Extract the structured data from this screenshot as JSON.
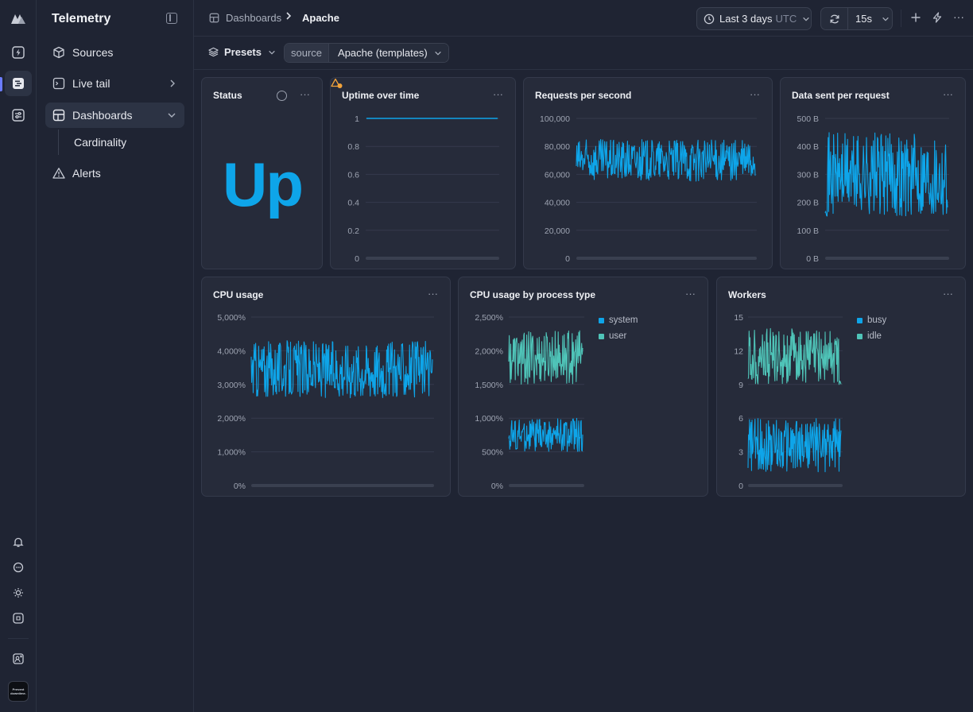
{
  "app": {
    "title": "Telemetry"
  },
  "rail": {
    "icons": [
      "logo-icon",
      "bolt-icon",
      "telemetry-icon",
      "sliders-icon",
      "bell-icon",
      "chat-icon",
      "sun-icon",
      "command-icon",
      "add-user-icon"
    ],
    "avatar_text": "Prevent downtime."
  },
  "sidebar": {
    "items": [
      {
        "label": "Sources",
        "icon": "cube-icon"
      },
      {
        "label": "Live tail",
        "icon": "terminal-icon"
      },
      {
        "label": "Dashboards",
        "icon": "dashboard-icon"
      },
      {
        "label": "Alerts",
        "icon": "warning-icon"
      }
    ],
    "sub_items": [
      {
        "label": "Cardinality"
      }
    ]
  },
  "header": {
    "breadcrumb": [
      "Dashboards",
      "Apache"
    ],
    "time_range": "Last 3 days",
    "timezone": "UTC",
    "refresh_interval": "15s"
  },
  "toolbar": {
    "presets_label": "Presets",
    "source_label": "source",
    "source_value": "Apache (templates)"
  },
  "colors": {
    "accent": "#0ea5e9",
    "secondary": "#4fc4b8",
    "background": "#1f2433",
    "card": "#262b3a"
  },
  "cards": {
    "status": {
      "title": "Status",
      "value": "Up"
    },
    "uptime": {
      "title": "Uptime over time"
    },
    "rps": {
      "title": "Requests per second"
    },
    "data_sent": {
      "title": "Data sent per request"
    },
    "cpu": {
      "title": "CPU usage"
    },
    "cpu_type": {
      "title": "CPU usage by process type"
    },
    "workers": {
      "title": "Workers"
    }
  },
  "chart_data": [
    {
      "id": "uptime",
      "type": "line",
      "title": "Uptime over time",
      "ylim": [
        0,
        1
      ],
      "yticks": [
        "1",
        "0.8",
        "0.6",
        "0.4",
        "0.2",
        "0"
      ],
      "series": [
        {
          "constant": 1
        }
      ]
    },
    {
      "id": "rps",
      "type": "line",
      "title": "Requests per second",
      "ylim": [
        0,
        100000
      ],
      "yticks": [
        "100,000",
        "80,000",
        "60,000",
        "40,000",
        "20,000",
        "0"
      ],
      "series": [
        {
          "range": [
            55000,
            85000
          ]
        }
      ]
    },
    {
      "id": "data_sent",
      "type": "line",
      "title": "Data sent per request",
      "ylim": [
        0,
        500
      ],
      "yticks": [
        "500 B",
        "400 B",
        "300 B",
        "200 B",
        "100 B",
        "0 B"
      ],
      "series": [
        {
          "range": [
            150,
            450
          ]
        }
      ]
    },
    {
      "id": "cpu",
      "type": "line",
      "title": "CPU usage",
      "ylim": [
        0,
        5000
      ],
      "yticks": [
        "5,000%",
        "4,000%",
        "3,000%",
        "2,000%",
        "1,000%",
        "0%"
      ],
      "series": [
        {
          "range": [
            2600,
            4300
          ]
        }
      ]
    },
    {
      "id": "cpu_type",
      "type": "line",
      "title": "CPU usage by process type",
      "ylim": [
        0,
        2500
      ],
      "yticks": [
        "2,500%",
        "2,000%",
        "1,500%",
        "1,000%",
        "500%",
        "0%"
      ],
      "legend": "right",
      "series": [
        {
          "name": "system",
          "range": [
            500,
            1000
          ]
        },
        {
          "name": "user",
          "range": [
            1500,
            2300
          ]
        }
      ]
    },
    {
      "id": "workers",
      "type": "line",
      "title": "Workers",
      "ylim": [
        0,
        15
      ],
      "yticks": [
        "15",
        "12",
        "9",
        "6",
        "3",
        "0"
      ],
      "legend": "right",
      "series": [
        {
          "name": "busy",
          "range": [
            1.2,
            6
          ]
        },
        {
          "name": "idle",
          "range": [
            9,
            14
          ]
        }
      ]
    }
  ]
}
